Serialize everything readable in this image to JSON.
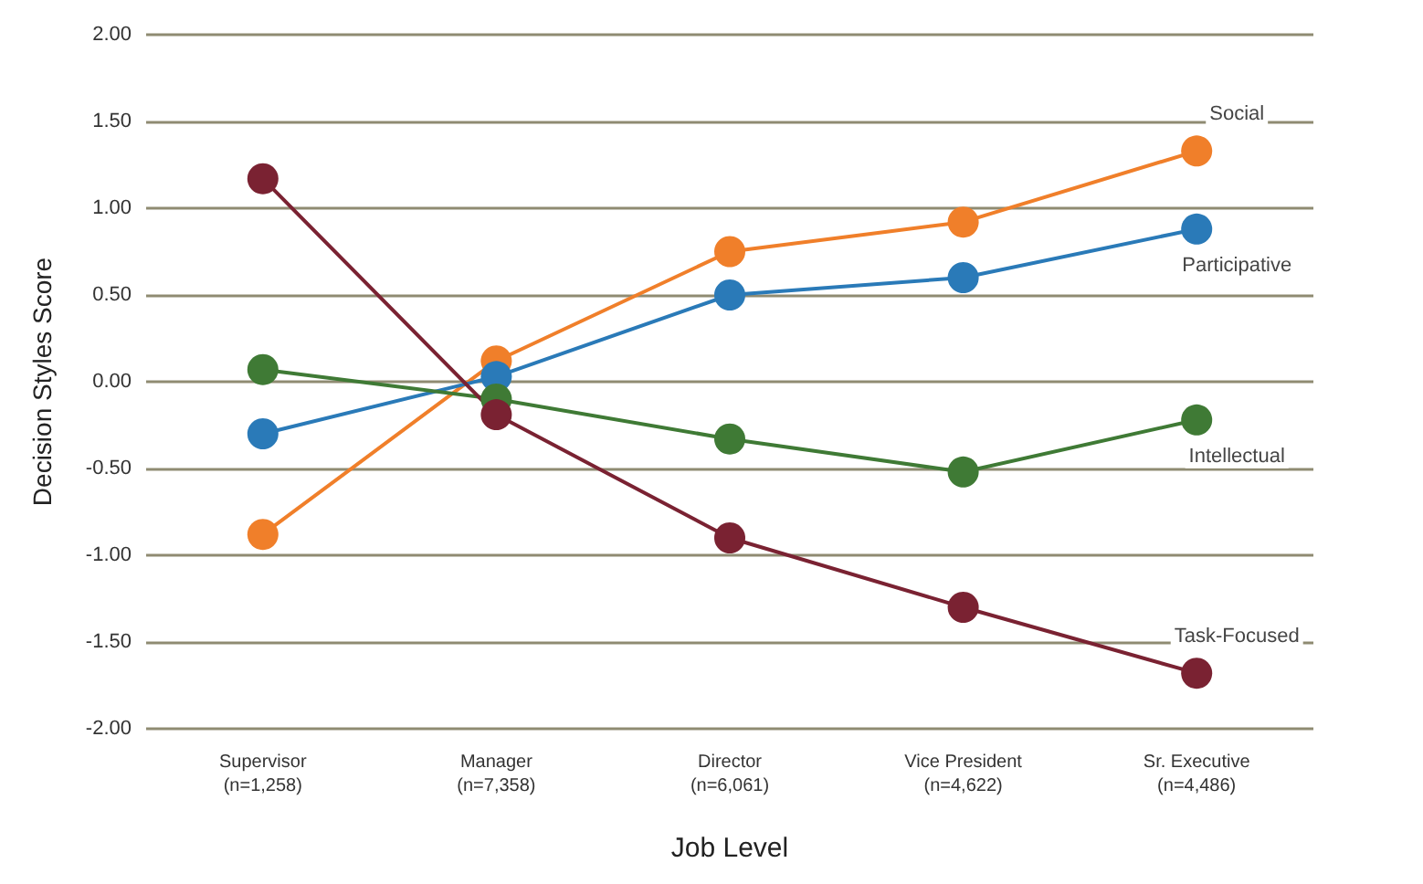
{
  "chart_data": {
    "type": "line",
    "xlabel": "Job Level",
    "ylabel": "Decision Styles Score",
    "categories": [
      "Supervisor\n(n=1,258)",
      "Manager\n(n=7,358)",
      "Director\n(n=6,061)",
      "Vice President\n(n=4,622)",
      "Sr. Executive\n(n=4,486)"
    ],
    "series": [
      {
        "name": "Social",
        "color": "#f07f2a",
        "values": [
          -0.88,
          0.12,
          0.75,
          0.92,
          1.33
        ]
      },
      {
        "name": "Participative",
        "color": "#2a7ab8",
        "values": [
          -0.3,
          0.03,
          0.5,
          0.6,
          0.88
        ]
      },
      {
        "name": "Intellectual",
        "color": "#3f7a35",
        "values": [
          0.07,
          -0.1,
          -0.33,
          -0.52,
          -0.22
        ]
      },
      {
        "name": "Task-Focused",
        "color": "#7a2232",
        "values": [
          1.17,
          -0.19,
          -0.9,
          -1.3,
          -1.68
        ]
      }
    ],
    "ylim": [
      -2,
      2
    ],
    "yticks": [
      {
        "value": -2,
        "label": "-2.00"
      },
      {
        "value": -1.5,
        "label": "-1.50"
      },
      {
        "value": -1,
        "label": "-1.00"
      },
      {
        "value": -0.5,
        "label": "-0.50"
      },
      {
        "value": 0,
        "label": "0.00"
      },
      {
        "value": 0.5,
        "label": "0.50"
      },
      {
        "value": 1,
        "label": "1.00"
      },
      {
        "value": 1.5,
        "label": "1.50"
      },
      {
        "value": 2,
        "label": "2.00"
      }
    ],
    "grid": "y",
    "legend": false,
    "marker": "circle",
    "line_style": "solid"
  }
}
